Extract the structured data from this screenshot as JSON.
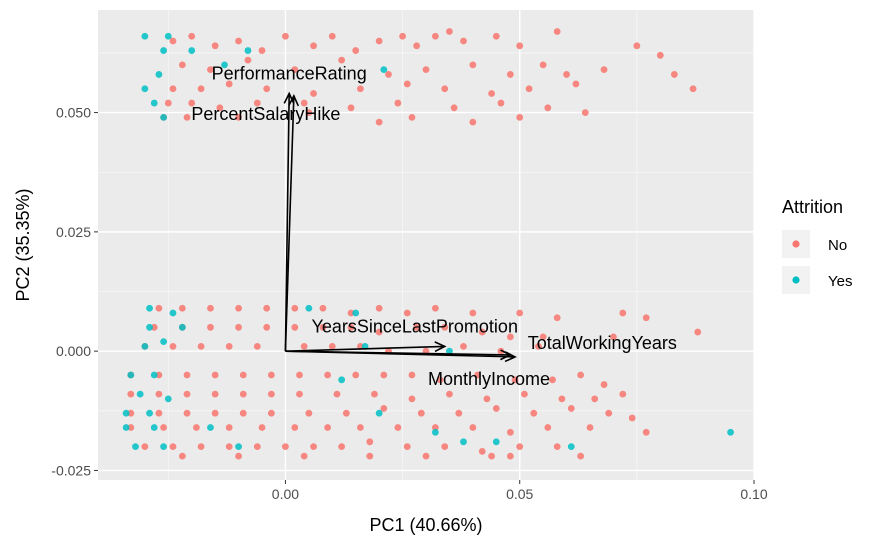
{
  "chart_data": {
    "type": "scatter",
    "title": "",
    "xlabel": "PC1 (40.66%)",
    "ylabel": "PC2 (35.35%)",
    "xlim": [
      -0.04,
      0.1
    ],
    "ylim": [
      -0.027,
      0.0715
    ],
    "x_ticks": [
      0.0,
      0.05,
      0.1
    ],
    "x_tick_labels": [
      "0.00",
      "0.05",
      "0.10"
    ],
    "y_ticks": [
      -0.025,
      0.0,
      0.025,
      0.05
    ],
    "y_tick_labels": [
      "-0.025",
      "0.000",
      "0.025",
      "0.050"
    ],
    "grid": true,
    "legend": {
      "title": "Attrition",
      "position": "right",
      "entries": [
        {
          "label": "No",
          "color": "#F8766D"
        },
        {
          "label": "Yes",
          "color": "#00BFC4"
        }
      ]
    },
    "series": [
      {
        "name": "No",
        "color": "#F8766D",
        "points": [
          [
            -0.024,
            0.065
          ],
          [
            -0.02,
            0.066
          ],
          [
            -0.015,
            0.064
          ],
          [
            -0.01,
            0.065
          ],
          [
            -0.005,
            0.063
          ],
          [
            0.0,
            0.066
          ],
          [
            0.006,
            0.064
          ],
          [
            0.01,
            0.066
          ],
          [
            0.015,
            0.063
          ],
          [
            0.02,
            0.065
          ],
          [
            0.025,
            0.066
          ],
          [
            0.028,
            0.064
          ],
          [
            0.032,
            0.066
          ],
          [
            0.035,
            0.067
          ],
          [
            0.038,
            0.065
          ],
          [
            0.045,
            0.066
          ],
          [
            0.05,
            0.064
          ],
          [
            0.058,
            0.067
          ],
          [
            0.075,
            0.064
          ],
          [
            0.08,
            0.062
          ],
          [
            -0.022,
            0.06
          ],
          [
            -0.016,
            0.059
          ],
          [
            -0.008,
            0.061
          ],
          [
            0.002,
            0.059
          ],
          [
            0.012,
            0.061
          ],
          [
            0.022,
            0.058
          ],
          [
            0.03,
            0.059
          ],
          [
            0.04,
            0.06
          ],
          [
            0.048,
            0.058
          ],
          [
            0.055,
            0.06
          ],
          [
            0.06,
            0.058
          ],
          [
            0.068,
            0.059
          ],
          [
            0.083,
            0.058
          ],
          [
            -0.024,
            0.055
          ],
          [
            -0.018,
            0.055
          ],
          [
            -0.012,
            0.056
          ],
          [
            -0.004,
            0.055
          ],
          [
            0.006,
            0.054
          ],
          [
            0.016,
            0.055
          ],
          [
            0.026,
            0.056
          ],
          [
            0.034,
            0.055
          ],
          [
            0.044,
            0.054
          ],
          [
            0.052,
            0.055
          ],
          [
            0.062,
            0.056
          ],
          [
            0.087,
            0.055
          ],
          [
            -0.025,
            0.052
          ],
          [
            -0.02,
            0.052
          ],
          [
            -0.014,
            0.051
          ],
          [
            -0.006,
            0.052
          ],
          [
            0.004,
            0.052
          ],
          [
            0.014,
            0.051
          ],
          [
            0.024,
            0.052
          ],
          [
            0.036,
            0.051
          ],
          [
            0.046,
            0.052
          ],
          [
            0.056,
            0.051
          ],
          [
            0.064,
            0.05
          ],
          [
            -0.026,
            0.049
          ],
          [
            -0.021,
            0.049
          ],
          [
            -0.01,
            0.049
          ],
          [
            0.005,
            0.05
          ],
          [
            0.02,
            0.048
          ],
          [
            0.027,
            0.049
          ],
          [
            0.04,
            0.048
          ],
          [
            0.05,
            0.049
          ],
          [
            -0.027,
            0.009
          ],
          [
            -0.022,
            0.009
          ],
          [
            -0.016,
            0.009
          ],
          [
            -0.01,
            0.009
          ],
          [
            -0.004,
            0.009
          ],
          [
            0.002,
            0.009
          ],
          [
            0.008,
            0.009
          ],
          [
            0.014,
            0.008
          ],
          [
            0.02,
            0.009
          ],
          [
            0.026,
            0.008
          ],
          [
            0.032,
            0.009
          ],
          [
            0.04,
            0.008
          ],
          [
            0.05,
            0.008
          ],
          [
            0.058,
            0.007
          ],
          [
            0.072,
            0.008
          ],
          [
            0.077,
            0.007
          ],
          [
            -0.028,
            0.005
          ],
          [
            -0.022,
            0.005
          ],
          [
            -0.016,
            0.005
          ],
          [
            -0.01,
            0.005
          ],
          [
            -0.004,
            0.005
          ],
          [
            0.002,
            0.005
          ],
          [
            0.008,
            0.005
          ],
          [
            0.014,
            0.005
          ],
          [
            0.02,
            0.004
          ],
          [
            0.028,
            0.005
          ],
          [
            0.034,
            0.005
          ],
          [
            0.042,
            0.004
          ],
          [
            0.048,
            0.003
          ],
          [
            0.055,
            0.003
          ],
          [
            0.07,
            0.003
          ],
          [
            0.088,
            0.004
          ],
          [
            -0.03,
            0.001
          ],
          [
            -0.024,
            0.001
          ],
          [
            -0.018,
            0.001
          ],
          [
            -0.012,
            0.001
          ],
          [
            -0.006,
            0.001
          ],
          [
            0.004,
            0.001
          ],
          [
            0.01,
            0.001
          ],
          [
            0.016,
            0.001
          ],
          [
            0.022,
            0.0
          ],
          [
            0.03,
            0.0
          ],
          [
            0.038,
            0.001
          ],
          [
            0.046,
            0.0
          ],
          [
            0.054,
            0.001
          ],
          [
            -0.033,
            -0.005
          ],
          [
            -0.027,
            -0.005
          ],
          [
            -0.021,
            -0.005
          ],
          [
            -0.015,
            -0.005
          ],
          [
            -0.009,
            -0.005
          ],
          [
            -0.003,
            -0.005
          ],
          [
            0.003,
            -0.005
          ],
          [
            0.009,
            -0.005
          ],
          [
            0.015,
            -0.005
          ],
          [
            0.021,
            -0.005
          ],
          [
            0.027,
            -0.005
          ],
          [
            0.033,
            -0.006
          ],
          [
            0.041,
            -0.005
          ],
          [
            0.049,
            -0.006
          ],
          [
            0.057,
            -0.006
          ],
          [
            0.063,
            -0.005
          ],
          [
            0.068,
            -0.007
          ],
          [
            -0.033,
            -0.009
          ],
          [
            -0.027,
            -0.009
          ],
          [
            -0.021,
            -0.009
          ],
          [
            -0.015,
            -0.009
          ],
          [
            -0.009,
            -0.009
          ],
          [
            -0.003,
            -0.009
          ],
          [
            0.003,
            -0.009
          ],
          [
            0.011,
            -0.009
          ],
          [
            0.019,
            -0.009
          ],
          [
            0.027,
            -0.01
          ],
          [
            0.035,
            -0.009
          ],
          [
            0.043,
            -0.01
          ],
          [
            0.051,
            -0.009
          ],
          [
            0.059,
            -0.01
          ],
          [
            0.066,
            -0.01
          ],
          [
            0.072,
            -0.009
          ],
          [
            -0.033,
            -0.013
          ],
          [
            -0.027,
            -0.013
          ],
          [
            -0.021,
            -0.013
          ],
          [
            -0.015,
            -0.013
          ],
          [
            -0.009,
            -0.013
          ],
          [
            -0.003,
            -0.013
          ],
          [
            0.005,
            -0.013
          ],
          [
            0.013,
            -0.013
          ],
          [
            0.021,
            -0.012
          ],
          [
            0.029,
            -0.013
          ],
          [
            0.037,
            -0.013
          ],
          [
            0.045,
            -0.012
          ],
          [
            0.053,
            -0.013
          ],
          [
            0.061,
            -0.012
          ],
          [
            0.069,
            -0.013
          ],
          [
            0.074,
            -0.014
          ],
          [
            -0.033,
            -0.016
          ],
          [
            -0.026,
            -0.016
          ],
          [
            -0.019,
            -0.016
          ],
          [
            -0.012,
            -0.016
          ],
          [
            -0.005,
            -0.016
          ],
          [
            0.002,
            -0.016
          ],
          [
            0.009,
            -0.016
          ],
          [
            0.016,
            -0.016
          ],
          [
            0.024,
            -0.016
          ],
          [
            0.032,
            -0.016
          ],
          [
            0.04,
            -0.016
          ],
          [
            0.048,
            -0.017
          ],
          [
            0.056,
            -0.016
          ],
          [
            0.065,
            -0.016
          ],
          [
            0.077,
            -0.017
          ],
          [
            -0.03,
            -0.02
          ],
          [
            -0.024,
            -0.02
          ],
          [
            -0.018,
            -0.02
          ],
          [
            -0.012,
            -0.02
          ],
          [
            -0.006,
            -0.02
          ],
          [
            0.0,
            -0.02
          ],
          [
            0.006,
            -0.02
          ],
          [
            0.012,
            -0.02
          ],
          [
            0.018,
            -0.019
          ],
          [
            0.026,
            -0.02
          ],
          [
            0.034,
            -0.02
          ],
          [
            0.042,
            -0.021
          ],
          [
            0.05,
            -0.02
          ],
          [
            0.058,
            -0.02
          ],
          [
            -0.022,
            -0.022
          ],
          [
            -0.01,
            -0.022
          ],
          [
            0.004,
            -0.022
          ],
          [
            0.018,
            -0.022
          ],
          [
            0.03,
            -0.022
          ],
          [
            0.044,
            -0.022
          ],
          [
            0.048,
            -0.022
          ],
          [
            0.063,
            -0.022
          ]
        ]
      },
      {
        "name": "Yes",
        "color": "#00BFC4",
        "points": [
          [
            -0.03,
            0.066
          ],
          [
            -0.026,
            0.063
          ],
          [
            -0.027,
            0.058
          ],
          [
            -0.028,
            0.052
          ],
          [
            -0.03,
            0.055
          ],
          [
            -0.026,
            0.049
          ],
          [
            -0.02,
            0.063
          ],
          [
            -0.013,
            0.06
          ],
          [
            -0.008,
            0.063
          ],
          [
            0.021,
            0.059
          ],
          [
            -0.025,
            0.066
          ],
          [
            -0.029,
            0.009
          ],
          [
            -0.024,
            0.008
          ],
          [
            -0.029,
            0.005
          ],
          [
            -0.022,
            0.005
          ],
          [
            -0.03,
            0.001
          ],
          [
            -0.026,
            0.002
          ],
          [
            -0.033,
            -0.005
          ],
          [
            -0.028,
            -0.005
          ],
          [
            -0.031,
            -0.009
          ],
          [
            -0.025,
            -0.01
          ],
          [
            -0.034,
            -0.013
          ],
          [
            -0.029,
            -0.013
          ],
          [
            -0.034,
            -0.016
          ],
          [
            -0.028,
            -0.016
          ],
          [
            -0.032,
            -0.02
          ],
          [
            -0.026,
            -0.02
          ],
          [
            0.005,
            0.009
          ],
          [
            0.015,
            0.008
          ],
          [
            0.012,
            -0.006
          ],
          [
            0.017,
            0.001
          ],
          [
            0.035,
            0.0
          ],
          [
            0.032,
            -0.017
          ],
          [
            0.038,
            -0.019
          ],
          [
            0.045,
            -0.019
          ],
          [
            0.061,
            -0.02
          ],
          [
            0.095,
            -0.017
          ],
          [
            -0.016,
            -0.016
          ],
          [
            -0.01,
            -0.02
          ],
          [
            0.02,
            -0.013
          ]
        ]
      }
    ],
    "vectors": [
      {
        "name": "PerformanceRating",
        "x": 0.0008,
        "y": 0.054
      },
      {
        "name": "PercentSalaryHike",
        "x": 0.0018,
        "y": 0.0535
      },
      {
        "name": "YearsSinceLastPromotion",
        "x": 0.034,
        "y": 0.001
      },
      {
        "name": "TotalWorkingYears",
        "x": 0.048,
        "y": -0.0008
      },
      {
        "name": "MonthlyIncome",
        "x": 0.049,
        "y": -0.0012
      }
    ]
  }
}
